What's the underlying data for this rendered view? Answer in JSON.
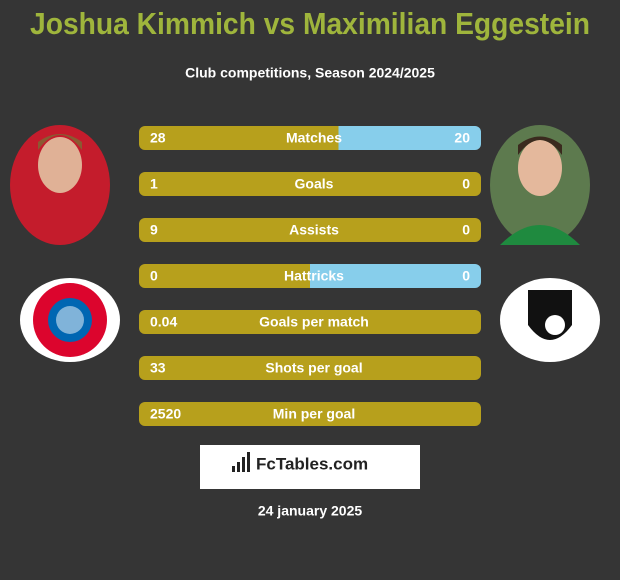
{
  "header": {
    "title": "Joshua Kimmich vs Maximilian Eggestein",
    "subtitle": "Club competitions, Season 2024/2025"
  },
  "rows": [
    {
      "label": "Matches",
      "left": 28,
      "right": 20
    },
    {
      "label": "Goals",
      "left": 1,
      "right": 0
    },
    {
      "label": "Assists",
      "left": 9,
      "right": 0
    },
    {
      "label": "Hattricks",
      "left": 0,
      "right": 0
    },
    {
      "label": "Goals per match",
      "left": 0.04
    },
    {
      "label": "Shots per goal",
      "left": 33
    },
    {
      "label": "Min per goal",
      "left": 2520
    }
  ],
  "logo": "FcTables.com",
  "date": "24 january 2025"
}
